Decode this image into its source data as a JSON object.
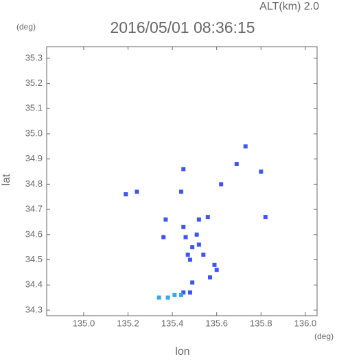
{
  "chart_data": {
    "type": "scatter",
    "title": "2016/05/01 08:36:15",
    "annotation": "ALT(km) 2.0",
    "ylabel": "lat",
    "xlabel": "lon",
    "yunit": "(deg)",
    "xunit": "(deg)",
    "xlim": [
      134.833,
      136.053
    ],
    "ylim": [
      34.278,
      35.346
    ],
    "xticks": [
      {
        "value": 135,
        "label": "135.0"
      },
      135.2,
      135.4,
      135.6,
      135.8,
      {
        "value": 136,
        "label": "136.0"
      }
    ],
    "yticks": [
      34.3,
      34.4,
      34.5,
      34.6,
      34.7,
      34.8,
      34.9,
      {
        "value": 35,
        "label": "35.0"
      },
      35.1,
      35.2,
      35.3
    ],
    "series": [
      {
        "color": "#3f55ee",
        "x": [
          135.73,
          135.69,
          135.8,
          135.19,
          135.24,
          135.44,
          135.45,
          135.62,
          135.82,
          135.37,
          135.36,
          135.45,
          135.46,
          135.52,
          135.56,
          135.49,
          135.48,
          135.47,
          135.52,
          135.54,
          135.59,
          135.6,
          135.57,
          135.49,
          135.48,
          135.45,
          135.51
        ],
        "values": [
          34.95,
          34.88,
          34.85,
          34.76,
          34.77,
          34.77,
          34.86,
          34.8,
          34.67,
          34.66,
          34.59,
          34.63,
          34.59,
          34.66,
          34.67,
          34.55,
          34.5,
          34.52,
          34.56,
          34.52,
          34.48,
          34.46,
          34.43,
          34.41,
          34.37,
          34.37,
          34.6
        ]
      },
      {
        "color": "#3aa6e8",
        "x": [
          135.38,
          135.34,
          135.41,
          135.44
        ],
        "values": [
          34.35,
          34.35,
          34.36,
          34.36
        ]
      }
    ]
  }
}
